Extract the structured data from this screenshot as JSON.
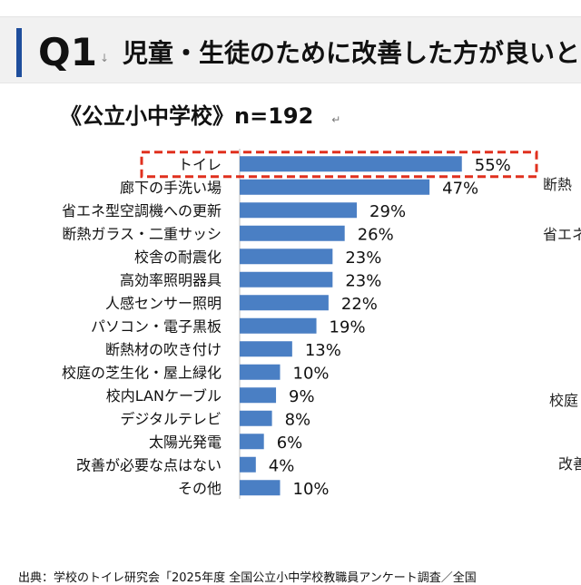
{
  "header": {
    "q": "Q1",
    "mark": "↓",
    "title": "児童・生徒のために改善した方が良いと"
  },
  "subtitle": {
    "text": "《公立小中学校》n=192",
    "mark": "↵"
  },
  "side_fragments": [
    "断熱",
    "省エネ",
    "校庭",
    "改善"
  ],
  "footer": "出典：学校のトイレ研究会「2025年度 全国公立小中学校教職員アンケート調査／全国",
  "colors": {
    "bar": "#4a7fc4",
    "highlight": "#e0301e",
    "accent": "#1f4e9c"
  },
  "chart_data": {
    "type": "bar",
    "orientation": "horizontal",
    "highlight_category": "トイレ",
    "categories": [
      "トイレ",
      "廊下の手洗い場",
      "省エネ型空調機への更新",
      "断熱ガラス・二重サッシ",
      "校舎の耐震化",
      "高効率照明器具",
      "人感センサー照明",
      "パソコン・電子黒板",
      "断熱材の吹き付け",
      "校庭の芝生化・屋上緑化",
      "校内LANケーブル",
      "デジタルテレビ",
      "太陽光発電",
      "改善が必要な点はない",
      "その他"
    ],
    "values": [
      55,
      47,
      29,
      26,
      23,
      23,
      22,
      19,
      13,
      10,
      9,
      8,
      6,
      4,
      10
    ],
    "labels": [
      "55%",
      "47%",
      "29%",
      "26%",
      "23%",
      "23%",
      "22%",
      "19%",
      "13%",
      "10%",
      "9%",
      "8%",
      "6%",
      "4%",
      "10%"
    ],
    "unit": "%"
  }
}
